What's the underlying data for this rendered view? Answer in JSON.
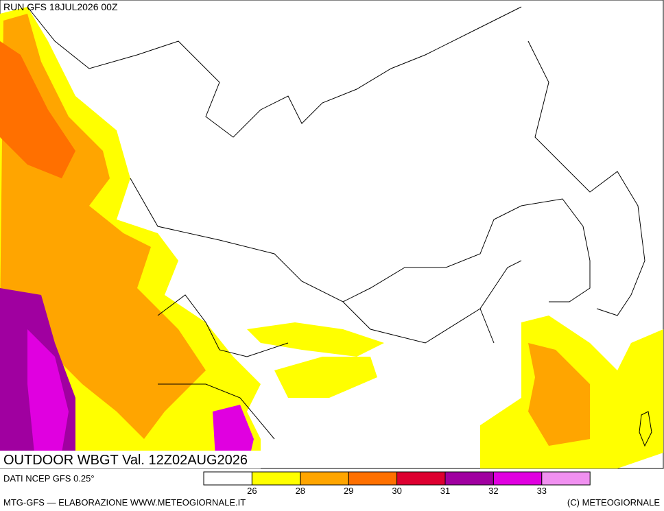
{
  "header": {
    "run": "RUN GFS 18JUL2026 00Z"
  },
  "map": {
    "title": "OUTDOOR WBGT Val. 12Z02AUG2026"
  },
  "legend": {
    "source": "DATI NCEP GFS 0.25°",
    "levels": [
      26,
      28,
      29,
      30,
      31,
      32,
      33
    ],
    "colors": [
      "#ffffff",
      "#ffff00",
      "#ffa500",
      "#ff7000",
      "#dd0030",
      "#a000a0",
      "#e000e0",
      "#f090f0"
    ]
  },
  "footer": {
    "left": "MTG-GFS — ELABORAZIONE WWW.METEOGIORNALE.IT",
    "right": "(C) METEOGIORNALE"
  }
}
